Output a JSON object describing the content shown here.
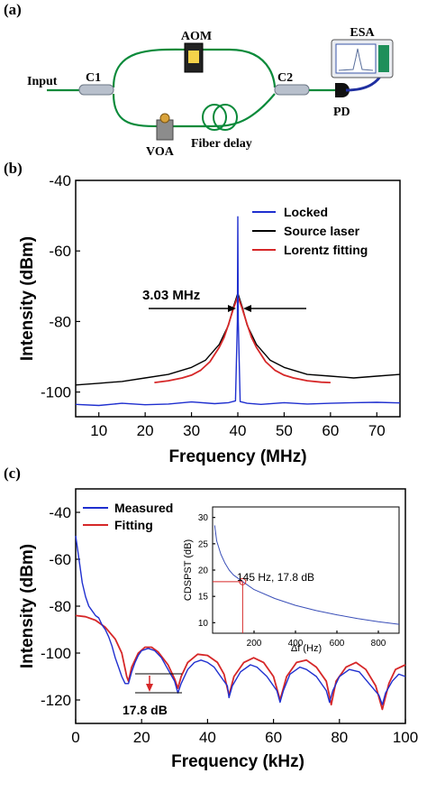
{
  "panel_a": {
    "label": "(a)",
    "components": {
      "aom": "AOM",
      "esa": "ESA",
      "input": "Input",
      "c1": "C1",
      "c2": "C2",
      "pd": "PD",
      "voa": "VOA",
      "fiber_delay": "Fiber delay"
    }
  },
  "chart_data": [
    {
      "panel": "(b)",
      "type": "line",
      "xlabel": "Frequency (MHz)",
      "ylabel": "Intensity (dBm)",
      "xlim": [
        5,
        75
      ],
      "ylim": [
        -107,
        -40
      ],
      "xticks": [
        10,
        20,
        30,
        40,
        50,
        60,
        70
      ],
      "yticks": [
        -100,
        -80,
        -60,
        -40
      ],
      "legend_position": "top-right",
      "annotation": "3.03 MHz",
      "series": [
        {
          "name": "Locked",
          "color": "#1f2fcf",
          "points": [
            [
              5,
              -103.5
            ],
            [
              10,
              -103.8
            ],
            [
              15,
              -103.2
            ],
            [
              20,
              -103.6
            ],
            [
              25,
              -103.4
            ],
            [
              30,
              -102.8
            ],
            [
              35,
              -103.3
            ],
            [
              38,
              -103.0
            ],
            [
              39.5,
              -102.5
            ],
            [
              39.9,
              -80
            ],
            [
              40,
              -50.3
            ],
            [
              40.1,
              -80
            ],
            [
              40.5,
              -102.7
            ],
            [
              42,
              -103.2
            ],
            [
              45,
              -103.5
            ],
            [
              50,
              -103.0
            ],
            [
              55,
              -103.4
            ],
            [
              60,
              -103.2
            ],
            [
              65,
              -103.0
            ],
            [
              70,
              -102.9
            ],
            [
              75,
              -103.1
            ]
          ]
        },
        {
          "name": "Source laser",
          "color": "#000000",
          "points": [
            [
              5,
              -98
            ],
            [
              10,
              -97.5
            ],
            [
              15,
              -97
            ],
            [
              20,
              -96
            ],
            [
              25,
              -95
            ],
            [
              30,
              -93
            ],
            [
              33,
              -91
            ],
            [
              36,
              -86.5
            ],
            [
              38,
              -81
            ],
            [
              39,
              -76
            ],
            [
              40,
              -72
            ],
            [
              41,
              -76
            ],
            [
              42,
              -81
            ],
            [
              44,
              -86.5
            ],
            [
              47,
              -91
            ],
            [
              50,
              -93
            ],
            [
              55,
              -95
            ],
            [
              60,
              -95.5
            ],
            [
              65,
              -96
            ],
            [
              70,
              -95.5
            ],
            [
              75,
              -95
            ]
          ]
        },
        {
          "name": "Lorentz fitting",
          "color": "#d62728",
          "points": [
            [
              22,
              -97.3
            ],
            [
              25,
              -96.8
            ],
            [
              28,
              -96.0
            ],
            [
              30,
              -95.2
            ],
            [
              32,
              -93.8
            ],
            [
              34,
              -91.4
            ],
            [
              36,
              -87.3
            ],
            [
              37,
              -84.6
            ],
            [
              38,
              -80.8
            ],
            [
              39,
              -76.5
            ],
            [
              40,
              -72.8
            ],
            [
              41,
              -76.5
            ],
            [
              42,
              -80.8
            ],
            [
              43,
              -84.6
            ],
            [
              44,
              -87.3
            ],
            [
              46,
              -91.4
            ],
            [
              48,
              -93.8
            ],
            [
              50,
              -95.2
            ],
            [
              52,
              -96.0
            ],
            [
              55,
              -96.8
            ],
            [
              58,
              -97.2
            ],
            [
              60,
              -97.3
            ]
          ]
        }
      ]
    },
    {
      "panel": "(c)",
      "type": "line",
      "xlabel": "Frequency (kHz)",
      "ylabel": "Intensity (dBm)",
      "xlim": [
        0,
        100
      ],
      "ylim": [
        -130,
        -30
      ],
      "xticks": [
        0,
        20,
        40,
        60,
        80,
        100
      ],
      "yticks": [
        -120,
        -100,
        -80,
        -60,
        -40
      ],
      "legend_position": "top-left",
      "annotation": "17.8 dB",
      "series": [
        {
          "name": "Measured",
          "color": "#1f2fcf",
          "points": [
            [
              0,
              -50
            ],
            [
              1,
              -60
            ],
            [
              2,
              -70
            ],
            [
              3,
              -76
            ],
            [
              4,
              -80
            ],
            [
              5,
              -82
            ],
            [
              6,
              -84
            ],
            [
              7,
              -85
            ],
            [
              8,
              -88
            ],
            [
              9,
              -90
            ],
            [
              10,
              -93
            ],
            [
              11,
              -97
            ],
            [
              12,
              -102
            ],
            [
              13,
              -106
            ],
            [
              14,
              -110
            ],
            [
              15,
              -113
            ],
            [
              16,
              -113
            ],
            [
              17,
              -108
            ],
            [
              18,
              -104
            ],
            [
              19,
              -101
            ],
            [
              20,
              -99
            ],
            [
              22,
              -98
            ],
            [
              24,
              -99
            ],
            [
              26,
              -102
            ],
            [
              28,
              -107
            ],
            [
              30,
              -112
            ],
            [
              31,
              -117
            ],
            [
              32,
              -113
            ],
            [
              34,
              -107
            ],
            [
              36,
              -104
            ],
            [
              38,
              -103
            ],
            [
              40,
              -104
            ],
            [
              42,
              -106
            ],
            [
              44,
              -110
            ],
            [
              46,
              -114
            ],
            [
              46.5,
              -119
            ],
            [
              47.5,
              -114
            ],
            [
              50,
              -108
            ],
            [
              53,
              -105
            ],
            [
              55,
              -106
            ],
            [
              58,
              -110
            ],
            [
              61,
              -116
            ],
            [
              62,
              -121
            ],
            [
              63,
              -116
            ],
            [
              65,
              -109
            ],
            [
              68,
              -106
            ],
            [
              70,
              -107
            ],
            [
              73,
              -110
            ],
            [
              76,
              -116
            ],
            [
              77,
              -121
            ],
            [
              78,
              -116
            ],
            [
              80,
              -110
            ],
            [
              83,
              -107
            ],
            [
              86,
              -108
            ],
            [
              89,
              -113
            ],
            [
              92,
              -118
            ],
            [
              93,
              -122
            ],
            [
              94,
              -117
            ],
            [
              96,
              -112
            ],
            [
              98,
              -109
            ],
            [
              100,
              -110
            ]
          ]
        },
        {
          "name": "Fitting",
          "color": "#d62728",
          "points": [
            [
              0,
              -84
            ],
            [
              3,
              -84.5
            ],
            [
              6,
              -86
            ],
            [
              9,
              -89
            ],
            [
              12,
              -94
            ],
            [
              14,
              -100
            ],
            [
              15.5,
              -110
            ],
            [
              16,
              -112
            ],
            [
              17,
              -106
            ],
            [
              19,
              -100
            ],
            [
              21,
              -97.5
            ],
            [
              23,
              -97.5
            ],
            [
              25,
              -99.5
            ],
            [
              28,
              -105
            ],
            [
              30,
              -111
            ],
            [
              31,
              -115
            ],
            [
              32,
              -110
            ],
            [
              34,
              -104
            ],
            [
              37,
              -100.5
            ],
            [
              40,
              -101
            ],
            [
              43,
              -104
            ],
            [
              45,
              -109
            ],
            [
              46.5,
              -118
            ],
            [
              48,
              -110
            ],
            [
              51,
              -104
            ],
            [
              54,
              -102
            ],
            [
              57,
              -104
            ],
            [
              60,
              -110
            ],
            [
              62,
              -120
            ],
            [
              64,
              -110
            ],
            [
              67,
              -104
            ],
            [
              70,
              -103
            ],
            [
              73,
              -106
            ],
            [
              76,
              -112
            ],
            [
              77.5,
              -122
            ],
            [
              79,
              -112
            ],
            [
              82,
              -106
            ],
            [
              85,
              -104
            ],
            [
              88,
              -107
            ],
            [
              91,
              -114
            ],
            [
              93,
              -124
            ],
            [
              95,
              -113
            ],
            [
              97,
              -107
            ],
            [
              100,
              -105
            ]
          ]
        }
      ],
      "inset": {
        "type": "line",
        "xlabel": "Δf (Hz)",
        "ylabel": "CDSPST (dB)",
        "xlim": [
          0,
          900
        ],
        "ylim": [
          8,
          32
        ],
        "xticks": [
          200,
          400,
          600,
          800
        ],
        "yticks": [
          10,
          15,
          20,
          25,
          30
        ],
        "annotation": "145 Hz, 17.8 dB",
        "marker": [
          145,
          17.8
        ],
        "points": [
          [
            10,
            28.5
          ],
          [
            20,
            25.5
          ],
          [
            40,
            23
          ],
          [
            60,
            21.3
          ],
          [
            80,
            20
          ],
          [
            100,
            19.1
          ],
          [
            145,
            17.8
          ],
          [
            200,
            16.3
          ],
          [
            300,
            14.6
          ],
          [
            400,
            13.3
          ],
          [
            500,
            12.3
          ],
          [
            600,
            11.5
          ],
          [
            700,
            10.8
          ],
          [
            800,
            10.2
          ],
          [
            900,
            9.7
          ]
        ]
      }
    }
  ]
}
